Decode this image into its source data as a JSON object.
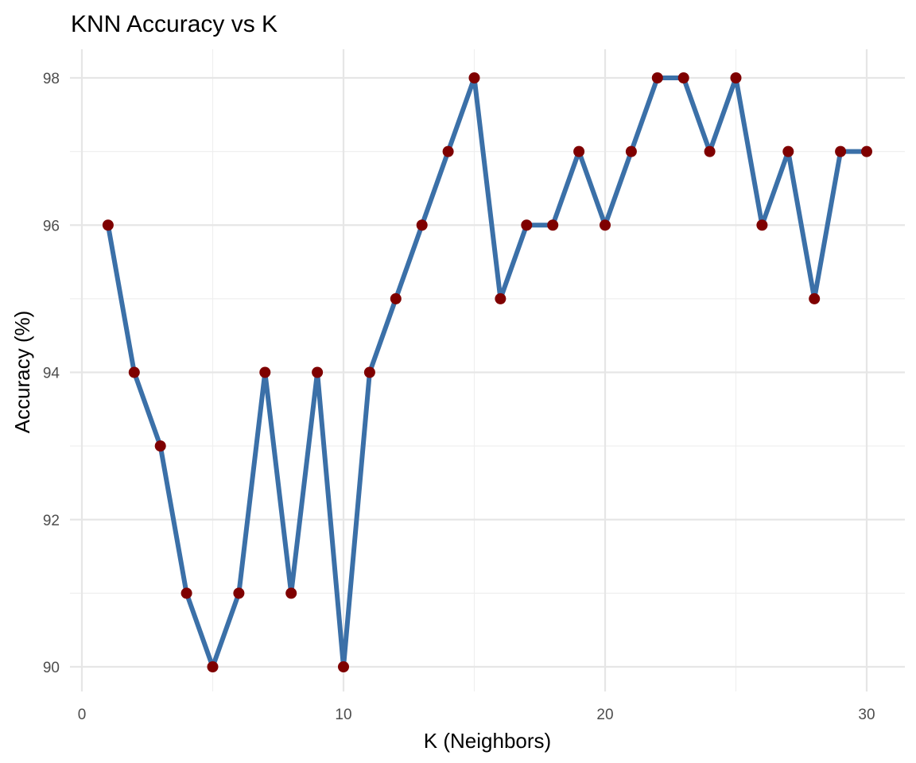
{
  "chart_data": {
    "type": "line",
    "title": "KNN Accuracy vs K",
    "xlabel": "K (Neighbors)",
    "ylabel": "Accuracy (%)",
    "xlim": [
      0,
      31
    ],
    "ylim": [
      89.9,
      98.3
    ],
    "x_ticks": [
      0,
      10,
      20,
      30
    ],
    "y_ticks": [
      90,
      92,
      94,
      96,
      98
    ],
    "grid": true,
    "legend": "none",
    "line_color": "#3b70a8",
    "point_color": "#7f0000",
    "series": [
      {
        "x": [
          1,
          2,
          3,
          4,
          5,
          6,
          7,
          8,
          9,
          10,
          11,
          12,
          13,
          14,
          15,
          16,
          17,
          18,
          19,
          20,
          21,
          22,
          23,
          24,
          25,
          26,
          27,
          28,
          29,
          30
        ],
        "values": [
          96,
          94,
          93,
          91,
          90,
          91,
          94,
          91,
          94,
          90,
          94,
          95,
          96,
          97,
          98,
          95,
          96,
          96,
          97,
          96,
          97,
          98,
          98,
          97,
          98,
          96,
          97,
          95,
          97,
          97
        ]
      }
    ]
  }
}
